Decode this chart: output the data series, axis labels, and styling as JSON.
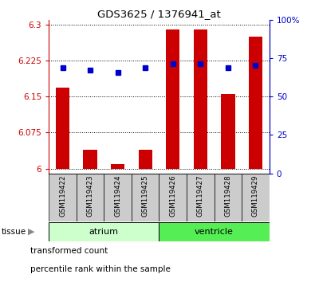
{
  "title": "GDS3625 / 1376941_at",
  "samples": [
    "GSM119422",
    "GSM119423",
    "GSM119424",
    "GSM119425",
    "GSM119426",
    "GSM119427",
    "GSM119428",
    "GSM119429"
  ],
  "bar_values": [
    6.168,
    6.04,
    6.01,
    6.04,
    6.29,
    6.29,
    6.155,
    6.275
  ],
  "percentile_values": [
    6.21,
    6.205,
    6.2,
    6.21,
    6.218,
    6.218,
    6.21,
    6.215
  ],
  "bar_base": 6.0,
  "ylim_left": [
    5.99,
    6.31
  ],
  "ylim_right": [
    0,
    100
  ],
  "yticks_left": [
    6.0,
    6.075,
    6.15,
    6.225,
    6.3
  ],
  "yticks_right": [
    0,
    25,
    50,
    75,
    100
  ],
  "ytick_labels_left": [
    "6",
    "6.075",
    "6.15",
    "6.225",
    "6.3"
  ],
  "ytick_labels_right": [
    "0",
    "25",
    "50",
    "75",
    "100%"
  ],
  "groups": [
    {
      "label": "atrium",
      "start": 0,
      "end": 4,
      "color": "#ccffcc"
    },
    {
      "label": "ventricle",
      "start": 4,
      "end": 8,
      "color": "#55ee55"
    }
  ],
  "bar_color": "#cc0000",
  "percentile_color": "#0000cc",
  "grid_color": "#000000",
  "bg_color": "#ffffff",
  "tissue_label": "tissue",
  "sample_box_color": "#cccccc",
  "legend_items": [
    {
      "color": "#cc0000",
      "label": "transformed count"
    },
    {
      "color": "#0000cc",
      "label": "percentile rank within the sample"
    }
  ]
}
